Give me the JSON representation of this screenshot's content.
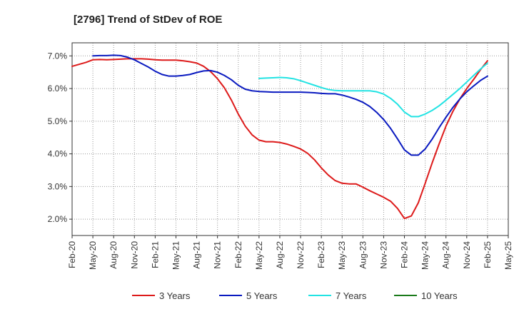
{
  "chart_data": {
    "type": "line",
    "title": "[2796]  Trend of StDev of ROE",
    "xlabel": "",
    "ylabel": "",
    "ylim": [
      1.5,
      7.4
    ],
    "yticks": [
      2.0,
      3.0,
      4.0,
      5.0,
      6.0,
      7.0
    ],
    "ytick_labels": [
      "2.0%",
      "3.0%",
      "4.0%",
      "5.0%",
      "6.0%",
      "7.0%"
    ],
    "grid": true,
    "legend_position": "bottom",
    "x_ticks": [
      "Feb-20",
      "May-20",
      "Aug-20",
      "Nov-20",
      "Feb-21",
      "May-21",
      "Aug-21",
      "Nov-21",
      "Feb-22",
      "May-22",
      "Aug-22",
      "Nov-22",
      "Feb-23",
      "May-23",
      "Aug-23",
      "Nov-23",
      "Feb-24",
      "May-24",
      "Aug-24",
      "Nov-24",
      "Feb-25",
      "May-25"
    ],
    "series": [
      {
        "name": "3 Years",
        "color": "#dd1a1a",
        "points": [
          [
            "Feb-20",
            6.68
          ],
          [
            "Mar-20",
            6.74
          ],
          [
            "Apr-20",
            6.8
          ],
          [
            "May-20",
            6.88
          ],
          [
            "Jun-20",
            6.89
          ],
          [
            "Jul-20",
            6.88
          ],
          [
            "Aug-20",
            6.89
          ],
          [
            "Sep-20",
            6.9
          ],
          [
            "Oct-20",
            6.91
          ],
          [
            "Nov-20",
            6.91
          ],
          [
            "Dec-20",
            6.91
          ],
          [
            "Jan-21",
            6.9
          ],
          [
            "Feb-21",
            6.88
          ],
          [
            "Mar-21",
            6.87
          ],
          [
            "Apr-21",
            6.87
          ],
          [
            "May-21",
            6.87
          ],
          [
            "Jun-21",
            6.85
          ],
          [
            "Jul-21",
            6.82
          ],
          [
            "Aug-21",
            6.78
          ],
          [
            "Sep-21",
            6.68
          ],
          [
            "Oct-21",
            6.52
          ],
          [
            "Nov-21",
            6.3
          ],
          [
            "Dec-21",
            6.02
          ],
          [
            "Jan-22",
            5.65
          ],
          [
            "Feb-22",
            5.22
          ],
          [
            "Mar-22",
            4.85
          ],
          [
            "Apr-22",
            4.58
          ],
          [
            "May-22",
            4.42
          ],
          [
            "Jun-22",
            4.37
          ],
          [
            "Jul-22",
            4.37
          ],
          [
            "Aug-22",
            4.35
          ],
          [
            "Sep-22",
            4.3
          ],
          [
            "Oct-22",
            4.23
          ],
          [
            "Nov-22",
            4.15
          ],
          [
            "Dec-22",
            4.02
          ],
          [
            "Jan-23",
            3.82
          ],
          [
            "Feb-23",
            3.57
          ],
          [
            "Mar-23",
            3.35
          ],
          [
            "Apr-23",
            3.18
          ],
          [
            "May-23",
            3.1
          ],
          [
            "Jun-23",
            3.08
          ],
          [
            "Jul-23",
            3.08
          ],
          [
            "Aug-23",
            2.98
          ],
          [
            "Sep-23",
            2.87
          ],
          [
            "Oct-23",
            2.77
          ],
          [
            "Nov-23",
            2.67
          ],
          [
            "Dec-23",
            2.55
          ],
          [
            "Jan-24",
            2.33
          ],
          [
            "Feb-24",
            2.02
          ],
          [
            "Mar-24",
            2.1
          ],
          [
            "Apr-24",
            2.5
          ],
          [
            "May-24",
            3.1
          ],
          [
            "Jun-24",
            3.72
          ],
          [
            "Jul-24",
            4.3
          ],
          [
            "Aug-24",
            4.85
          ],
          [
            "Sep-24",
            5.3
          ],
          [
            "Oct-24",
            5.68
          ],
          [
            "Nov-24",
            6.0
          ],
          [
            "Dec-24",
            6.28
          ],
          [
            "Jan-25",
            6.58
          ],
          [
            "Feb-25",
            6.85
          ]
        ]
      },
      {
        "name": "5 Years",
        "color": "#0a1ac0",
        "points": [
          [
            "May-20",
            7.0
          ],
          [
            "Jun-20",
            7.01
          ],
          [
            "Jul-20",
            7.01
          ],
          [
            "Aug-20",
            7.02
          ],
          [
            "Sep-20",
            7.01
          ],
          [
            "Oct-20",
            6.96
          ],
          [
            "Nov-20",
            6.88
          ],
          [
            "Dec-20",
            6.77
          ],
          [
            "Jan-21",
            6.66
          ],
          [
            "Feb-21",
            6.53
          ],
          [
            "Mar-21",
            6.43
          ],
          [
            "Apr-21",
            6.38
          ],
          [
            "May-21",
            6.38
          ],
          [
            "Jun-21",
            6.4
          ],
          [
            "Jul-21",
            6.43
          ],
          [
            "Aug-21",
            6.49
          ],
          [
            "Sep-21",
            6.54
          ],
          [
            "Oct-21",
            6.55
          ],
          [
            "Nov-21",
            6.5
          ],
          [
            "Dec-21",
            6.4
          ],
          [
            "Jan-22",
            6.27
          ],
          [
            "Feb-22",
            6.1
          ],
          [
            "Mar-22",
            5.98
          ],
          [
            "Apr-22",
            5.93
          ],
          [
            "May-22",
            5.91
          ],
          [
            "Jun-22",
            5.9
          ],
          [
            "Jul-22",
            5.89
          ],
          [
            "Aug-22",
            5.89
          ],
          [
            "Sep-22",
            5.89
          ],
          [
            "Oct-22",
            5.89
          ],
          [
            "Nov-22",
            5.89
          ],
          [
            "Dec-22",
            5.88
          ],
          [
            "Jan-23",
            5.87
          ],
          [
            "Feb-23",
            5.85
          ],
          [
            "Mar-23",
            5.84
          ],
          [
            "Apr-23",
            5.84
          ],
          [
            "May-23",
            5.8
          ],
          [
            "Jun-23",
            5.74
          ],
          [
            "Jul-23",
            5.67
          ],
          [
            "Aug-23",
            5.58
          ],
          [
            "Sep-23",
            5.45
          ],
          [
            "Oct-23",
            5.27
          ],
          [
            "Nov-23",
            5.05
          ],
          [
            "Dec-23",
            4.78
          ],
          [
            "Jan-24",
            4.46
          ],
          [
            "Feb-24",
            4.12
          ],
          [
            "Mar-24",
            3.96
          ],
          [
            "Apr-24",
            3.96
          ],
          [
            "May-24",
            4.15
          ],
          [
            "Jun-24",
            4.45
          ],
          [
            "Jul-24",
            4.8
          ],
          [
            "Aug-24",
            5.12
          ],
          [
            "Sep-24",
            5.42
          ],
          [
            "Oct-24",
            5.68
          ],
          [
            "Nov-24",
            5.9
          ],
          [
            "Dec-24",
            6.08
          ],
          [
            "Jan-25",
            6.25
          ],
          [
            "Feb-25",
            6.38
          ]
        ]
      },
      {
        "name": "7 Years",
        "color": "#22e3e3",
        "points": [
          [
            "May-22",
            6.31
          ],
          [
            "Jun-22",
            6.32
          ],
          [
            "Jul-22",
            6.33
          ],
          [
            "Aug-22",
            6.34
          ],
          [
            "Sep-22",
            6.33
          ],
          [
            "Oct-22",
            6.3
          ],
          [
            "Nov-22",
            6.24
          ],
          [
            "Dec-22",
            6.17
          ],
          [
            "Jan-23",
            6.1
          ],
          [
            "Feb-23",
            6.03
          ],
          [
            "Mar-23",
            5.97
          ],
          [
            "Apr-23",
            5.94
          ],
          [
            "May-23",
            5.93
          ],
          [
            "Jun-23",
            5.93
          ],
          [
            "Jul-23",
            5.93
          ],
          [
            "Aug-23",
            5.93
          ],
          [
            "Sep-23",
            5.93
          ],
          [
            "Oct-23",
            5.9
          ],
          [
            "Nov-23",
            5.83
          ],
          [
            "Dec-23",
            5.7
          ],
          [
            "Jan-24",
            5.52
          ],
          [
            "Feb-24",
            5.28
          ],
          [
            "Mar-24",
            5.14
          ],
          [
            "Apr-24",
            5.14
          ],
          [
            "May-24",
            5.22
          ],
          [
            "Jun-24",
            5.33
          ],
          [
            "Jul-24",
            5.47
          ],
          [
            "Aug-24",
            5.64
          ],
          [
            "Sep-24",
            5.82
          ],
          [
            "Oct-24",
            6.0
          ],
          [
            "Nov-24",
            6.2
          ],
          [
            "Dec-24",
            6.4
          ],
          [
            "Jan-25",
            6.6
          ],
          [
            "Feb-25",
            6.78
          ]
        ]
      },
      {
        "name": "10 Years",
        "color": "#1a7a1a",
        "points": []
      }
    ]
  }
}
